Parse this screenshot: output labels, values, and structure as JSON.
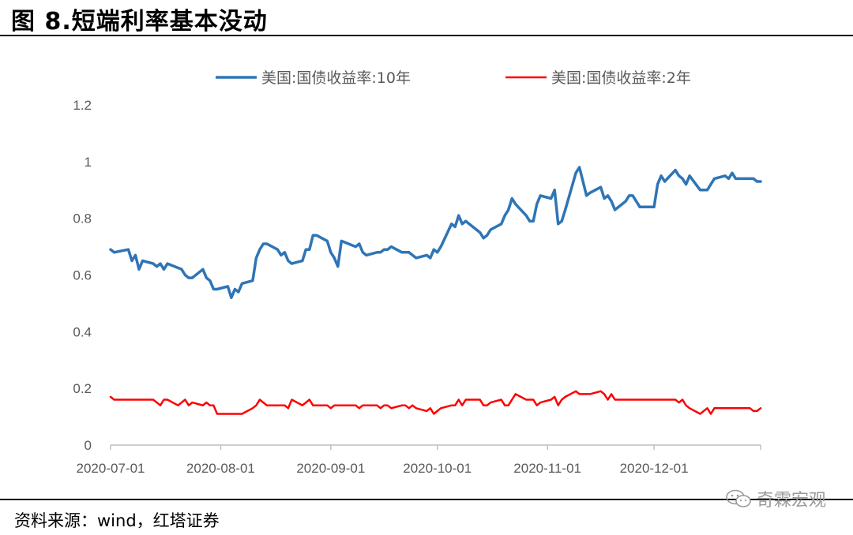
{
  "header": {
    "title": "图 8.短端利率基本没动"
  },
  "footer": {
    "source": "资料来源：wind，红塔证券",
    "watermark": "奇霖宏观"
  },
  "chart_data": {
    "type": "line",
    "ylim": [
      0,
      1.2
    ],
    "yticks": [
      "1.2",
      "1",
      "0.8",
      "0.6",
      "0.4",
      "0.2",
      "0"
    ],
    "xlim": [
      "2020-07-01",
      "2020-12-31"
    ],
    "xticks": [
      "2020-07-01",
      "2020-08-01",
      "2020-09-01",
      "2020-10-01",
      "2020-11-01",
      "2020-12-01"
    ],
    "legend_position": "top",
    "series": [
      {
        "name": "美国:国债收益率:10年",
        "color": "#2E75B6",
        "points": [
          [
            "2020-07-01",
            0.69
          ],
          [
            "2020-07-02",
            0.68
          ],
          [
            "2020-07-06",
            0.69
          ],
          [
            "2020-07-07",
            0.65
          ],
          [
            "2020-07-08",
            0.67
          ],
          [
            "2020-07-09",
            0.62
          ],
          [
            "2020-07-10",
            0.65
          ],
          [
            "2020-07-13",
            0.64
          ],
          [
            "2020-07-14",
            0.63
          ],
          [
            "2020-07-15",
            0.64
          ],
          [
            "2020-07-16",
            0.62
          ],
          [
            "2020-07-17",
            0.64
          ],
          [
            "2020-07-21",
            0.62
          ],
          [
            "2020-07-22",
            0.6
          ],
          [
            "2020-07-23",
            0.59
          ],
          [
            "2020-07-24",
            0.59
          ],
          [
            "2020-07-27",
            0.62
          ],
          [
            "2020-07-28",
            0.59
          ],
          [
            "2020-07-29",
            0.58
          ],
          [
            "2020-07-30",
            0.55
          ],
          [
            "2020-07-31",
            0.55
          ],
          [
            "2020-08-03",
            0.56
          ],
          [
            "2020-08-04",
            0.52
          ],
          [
            "2020-08-05",
            0.55
          ],
          [
            "2020-08-06",
            0.54
          ],
          [
            "2020-08-07",
            0.57
          ],
          [
            "2020-08-10",
            0.58
          ],
          [
            "2020-08-11",
            0.66
          ],
          [
            "2020-08-12",
            0.69
          ],
          [
            "2020-08-13",
            0.71
          ],
          [
            "2020-08-14",
            0.71
          ],
          [
            "2020-08-17",
            0.69
          ],
          [
            "2020-08-18",
            0.67
          ],
          [
            "2020-08-19",
            0.68
          ],
          [
            "2020-08-20",
            0.65
          ],
          [
            "2020-08-21",
            0.64
          ],
          [
            "2020-08-24",
            0.65
          ],
          [
            "2020-08-25",
            0.69
          ],
          [
            "2020-08-26",
            0.69
          ],
          [
            "2020-08-27",
            0.74
          ],
          [
            "2020-08-28",
            0.74
          ],
          [
            "2020-08-31",
            0.72
          ],
          [
            "2020-09-01",
            0.68
          ],
          [
            "2020-09-02",
            0.66
          ],
          [
            "2020-09-03",
            0.63
          ],
          [
            "2020-09-04",
            0.72
          ],
          [
            "2020-09-08",
            0.7
          ],
          [
            "2020-09-09",
            0.71
          ],
          [
            "2020-09-10",
            0.68
          ],
          [
            "2020-09-11",
            0.67
          ],
          [
            "2020-09-14",
            0.68
          ],
          [
            "2020-09-15",
            0.68
          ],
          [
            "2020-09-16",
            0.69
          ],
          [
            "2020-09-17",
            0.69
          ],
          [
            "2020-09-18",
            0.7
          ],
          [
            "2020-09-21",
            0.68
          ],
          [
            "2020-09-22",
            0.68
          ],
          [
            "2020-09-23",
            0.68
          ],
          [
            "2020-09-24",
            0.67
          ],
          [
            "2020-09-25",
            0.66
          ],
          [
            "2020-09-28",
            0.67
          ],
          [
            "2020-09-29",
            0.66
          ],
          [
            "2020-09-30",
            0.69
          ],
          [
            "2020-10-01",
            0.68
          ],
          [
            "2020-10-02",
            0.7
          ],
          [
            "2020-10-05",
            0.78
          ],
          [
            "2020-10-06",
            0.77
          ],
          [
            "2020-10-07",
            0.81
          ],
          [
            "2020-10-08",
            0.78
          ],
          [
            "2020-10-09",
            0.79
          ],
          [
            "2020-10-13",
            0.75
          ],
          [
            "2020-10-14",
            0.73
          ],
          [
            "2020-10-15",
            0.74
          ],
          [
            "2020-10-16",
            0.76
          ],
          [
            "2020-10-19",
            0.78
          ],
          [
            "2020-10-20",
            0.81
          ],
          [
            "2020-10-21",
            0.83
          ],
          [
            "2020-10-22",
            0.87
          ],
          [
            "2020-10-23",
            0.85
          ],
          [
            "2020-10-26",
            0.81
          ],
          [
            "2020-10-27",
            0.79
          ],
          [
            "2020-10-28",
            0.79
          ],
          [
            "2020-10-29",
            0.85
          ],
          [
            "2020-10-30",
            0.88
          ],
          [
            "2020-11-02",
            0.87
          ],
          [
            "2020-11-03",
            0.9
          ],
          [
            "2020-11-04",
            0.78
          ],
          [
            "2020-11-05",
            0.79
          ],
          [
            "2020-11-06",
            0.83
          ],
          [
            "2020-11-09",
            0.96
          ],
          [
            "2020-11-10",
            0.98
          ],
          [
            "2020-11-12",
            0.88
          ],
          [
            "2020-11-13",
            0.89
          ],
          [
            "2020-11-16",
            0.91
          ],
          [
            "2020-11-17",
            0.87
          ],
          [
            "2020-11-18",
            0.88
          ],
          [
            "2020-11-19",
            0.86
          ],
          [
            "2020-11-20",
            0.83
          ],
          [
            "2020-11-23",
            0.86
          ],
          [
            "2020-11-24",
            0.88
          ],
          [
            "2020-11-25",
            0.88
          ],
          [
            "2020-11-27",
            0.84
          ],
          [
            "2020-11-30",
            0.84
          ],
          [
            "2020-12-01",
            0.84
          ],
          [
            "2020-12-02",
            0.92
          ],
          [
            "2020-12-03",
            0.95
          ],
          [
            "2020-12-04",
            0.93
          ],
          [
            "2020-12-07",
            0.97
          ],
          [
            "2020-12-08",
            0.95
          ],
          [
            "2020-12-09",
            0.94
          ],
          [
            "2020-12-10",
            0.92
          ],
          [
            "2020-12-11",
            0.95
          ],
          [
            "2020-12-14",
            0.9
          ],
          [
            "2020-12-15",
            0.9
          ],
          [
            "2020-12-16",
            0.9
          ],
          [
            "2020-12-17",
            0.92
          ],
          [
            "2020-12-18",
            0.94
          ],
          [
            "2020-12-21",
            0.95
          ],
          [
            "2020-12-22",
            0.94
          ],
          [
            "2020-12-23",
            0.96
          ],
          [
            "2020-12-24",
            0.94
          ],
          [
            "2020-12-28",
            0.94
          ],
          [
            "2020-12-29",
            0.94
          ],
          [
            "2020-12-30",
            0.93
          ],
          [
            "2020-12-31",
            0.93
          ]
        ]
      },
      {
        "name": "美国:国债收益率:2年",
        "color": "#FF0000",
        "points": [
          [
            "2020-07-01",
            0.17
          ],
          [
            "2020-07-02",
            0.16
          ],
          [
            "2020-07-08",
            0.16
          ],
          [
            "2020-07-13",
            0.16
          ],
          [
            "2020-07-15",
            0.14
          ],
          [
            "2020-07-16",
            0.16
          ],
          [
            "2020-07-17",
            0.16
          ],
          [
            "2020-07-20",
            0.14
          ],
          [
            "2020-07-22",
            0.16
          ],
          [
            "2020-07-23",
            0.14
          ],
          [
            "2020-07-24",
            0.15
          ],
          [
            "2020-07-27",
            0.14
          ],
          [
            "2020-07-28",
            0.15
          ],
          [
            "2020-07-29",
            0.14
          ],
          [
            "2020-07-30",
            0.14
          ],
          [
            "2020-07-31",
            0.11
          ],
          [
            "2020-08-04",
            0.11
          ],
          [
            "2020-08-07",
            0.11
          ],
          [
            "2020-08-10",
            0.13
          ],
          [
            "2020-08-11",
            0.14
          ],
          [
            "2020-08-12",
            0.16
          ],
          [
            "2020-08-14",
            0.14
          ],
          [
            "2020-08-19",
            0.14
          ],
          [
            "2020-08-20",
            0.13
          ],
          [
            "2020-08-21",
            0.16
          ],
          [
            "2020-08-24",
            0.14
          ],
          [
            "2020-08-25",
            0.15
          ],
          [
            "2020-08-26",
            0.16
          ],
          [
            "2020-08-27",
            0.14
          ],
          [
            "2020-08-31",
            0.14
          ],
          [
            "2020-09-01",
            0.13
          ],
          [
            "2020-09-02",
            0.14
          ],
          [
            "2020-09-08",
            0.14
          ],
          [
            "2020-09-09",
            0.13
          ],
          [
            "2020-09-10",
            0.14
          ],
          [
            "2020-09-14",
            0.14
          ],
          [
            "2020-09-15",
            0.13
          ],
          [
            "2020-09-16",
            0.14
          ],
          [
            "2020-09-17",
            0.14
          ],
          [
            "2020-09-18",
            0.13
          ],
          [
            "2020-09-21",
            0.14
          ],
          [
            "2020-09-22",
            0.14
          ],
          [
            "2020-09-23",
            0.13
          ],
          [
            "2020-09-24",
            0.14
          ],
          [
            "2020-09-25",
            0.13
          ],
          [
            "2020-09-28",
            0.12
          ],
          [
            "2020-09-29",
            0.13
          ],
          [
            "2020-09-30",
            0.11
          ],
          [
            "2020-10-01",
            0.12
          ],
          [
            "2020-10-02",
            0.13
          ],
          [
            "2020-10-05",
            0.14
          ],
          [
            "2020-10-06",
            0.14
          ],
          [
            "2020-10-07",
            0.16
          ],
          [
            "2020-10-08",
            0.14
          ],
          [
            "2020-10-09",
            0.16
          ],
          [
            "2020-10-13",
            0.16
          ],
          [
            "2020-10-14",
            0.14
          ],
          [
            "2020-10-15",
            0.14
          ],
          [
            "2020-10-16",
            0.15
          ],
          [
            "2020-10-19",
            0.16
          ],
          [
            "2020-10-20",
            0.14
          ],
          [
            "2020-10-21",
            0.14
          ],
          [
            "2020-10-22",
            0.16
          ],
          [
            "2020-10-23",
            0.18
          ],
          [
            "2020-10-26",
            0.16
          ],
          [
            "2020-10-27",
            0.16
          ],
          [
            "2020-10-28",
            0.16
          ],
          [
            "2020-10-29",
            0.14
          ],
          [
            "2020-10-30",
            0.15
          ],
          [
            "2020-11-02",
            0.16
          ],
          [
            "2020-11-03",
            0.17
          ],
          [
            "2020-11-04",
            0.14
          ],
          [
            "2020-11-05",
            0.16
          ],
          [
            "2020-11-06",
            0.17
          ],
          [
            "2020-11-09",
            0.19
          ],
          [
            "2020-11-10",
            0.18
          ],
          [
            "2020-11-12",
            0.18
          ],
          [
            "2020-11-13",
            0.18
          ],
          [
            "2020-11-16",
            0.19
          ],
          [
            "2020-11-17",
            0.18
          ],
          [
            "2020-11-18",
            0.16
          ],
          [
            "2020-11-19",
            0.18
          ],
          [
            "2020-11-20",
            0.16
          ],
          [
            "2020-11-23",
            0.16
          ],
          [
            "2020-11-24",
            0.16
          ],
          [
            "2020-11-25",
            0.16
          ],
          [
            "2020-11-27",
            0.16
          ],
          [
            "2020-11-30",
            0.16
          ],
          [
            "2020-12-01",
            0.16
          ],
          [
            "2020-12-02",
            0.16
          ],
          [
            "2020-12-03",
            0.16
          ],
          [
            "2020-12-04",
            0.16
          ],
          [
            "2020-12-07",
            0.16
          ],
          [
            "2020-12-08",
            0.15
          ],
          [
            "2020-12-09",
            0.16
          ],
          [
            "2020-12-10",
            0.14
          ],
          [
            "2020-12-11",
            0.13
          ],
          [
            "2020-12-14",
            0.11
          ],
          [
            "2020-12-15",
            0.12
          ],
          [
            "2020-12-16",
            0.13
          ],
          [
            "2020-12-17",
            0.11
          ],
          [
            "2020-12-18",
            0.13
          ],
          [
            "2020-12-21",
            0.13
          ],
          [
            "2020-12-22",
            0.13
          ],
          [
            "2020-12-23",
            0.13
          ],
          [
            "2020-12-24",
            0.13
          ],
          [
            "2020-12-28",
            0.13
          ],
          [
            "2020-12-29",
            0.12
          ],
          [
            "2020-12-30",
            0.12
          ],
          [
            "2020-12-31",
            0.13
          ]
        ]
      }
    ]
  }
}
